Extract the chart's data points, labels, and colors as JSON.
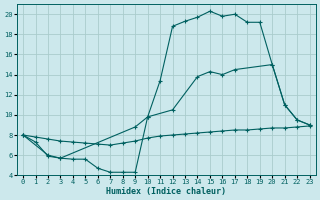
{
  "xlabel": "Humidex (Indice chaleur)",
  "bg_color": "#cce8ec",
  "line_color": "#006060",
  "grid_color": "#aacccc",
  "xlim": [
    -0.5,
    23.5
  ],
  "ylim": [
    4,
    21
  ],
  "yticks": [
    4,
    6,
    8,
    10,
    12,
    14,
    16,
    18,
    20
  ],
  "xticks": [
    0,
    1,
    2,
    3,
    4,
    5,
    6,
    7,
    8,
    9,
    10,
    11,
    12,
    13,
    14,
    15,
    16,
    17,
    18,
    19,
    20,
    21,
    22,
    23
  ],
  "line1_x": [
    0,
    1,
    2,
    3,
    4,
    5,
    6,
    7,
    8,
    9,
    10,
    11,
    12,
    13,
    14,
    15,
    16,
    17,
    18,
    19,
    20,
    21,
    22,
    23
  ],
  "line1_y": [
    8.0,
    7.3,
    5.9,
    5.7,
    5.6,
    5.6,
    4.7,
    4.3,
    4.3,
    4.3,
    9.8,
    13.4,
    18.8,
    19.3,
    19.7,
    20.3,
    19.8,
    20.0,
    19.2,
    19.2,
    15.0,
    11.0,
    9.5,
    9.0
  ],
  "line2_x": [
    0,
    2,
    3,
    9,
    10,
    12,
    14,
    15,
    16,
    17,
    20,
    21,
    22,
    23
  ],
  "line2_y": [
    8.0,
    6.0,
    5.7,
    8.8,
    9.8,
    10.5,
    13.8,
    14.3,
    14.0,
    14.5,
    15.0,
    11.0,
    9.5,
    9.0
  ],
  "line3_x": [
    0,
    1,
    2,
    3,
    4,
    5,
    6,
    7,
    8,
    9,
    10,
    11,
    12,
    13,
    14,
    15,
    16,
    17,
    18,
    19,
    20,
    21,
    22,
    23
  ],
  "line3_y": [
    8.0,
    7.8,
    7.6,
    7.4,
    7.3,
    7.2,
    7.1,
    7.0,
    7.2,
    7.4,
    7.7,
    7.9,
    8.0,
    8.1,
    8.2,
    8.3,
    8.4,
    8.5,
    8.5,
    8.6,
    8.7,
    8.7,
    8.8,
    8.9
  ]
}
